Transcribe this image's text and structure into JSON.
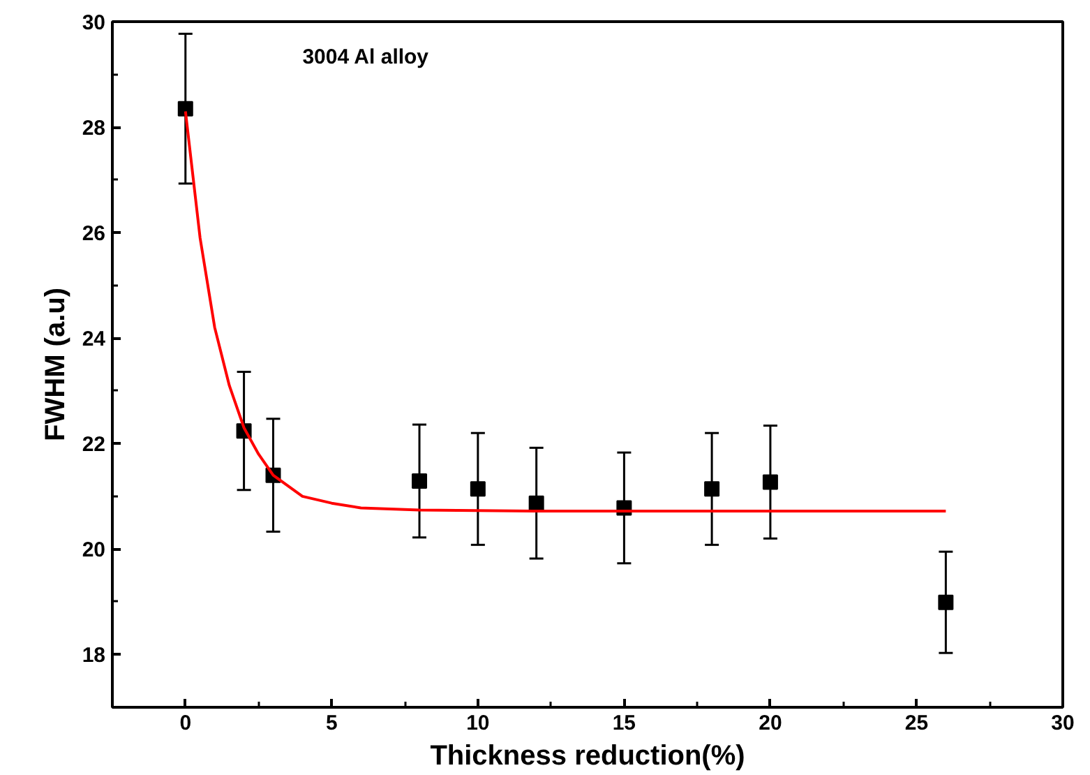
{
  "chart_data": {
    "type": "scatter",
    "xlabel": "Thickness reduction(%)",
    "ylabel": "FWHM (a.u)",
    "annotations": [
      "3004 Al alloy"
    ],
    "xlim": [
      -2.5,
      30
    ],
    "xticks": [
      0,
      5,
      10,
      15,
      20,
      25,
      30
    ],
    "ylim": [
      17,
      30
    ],
    "yticks": [
      18,
      20,
      22,
      24,
      26,
      28,
      30
    ],
    "grid": false,
    "marker": "square",
    "series": [
      {
        "color": "#000000",
        "x": [
          0,
          2,
          3,
          8,
          10,
          12,
          15,
          18,
          20,
          26
        ],
        "values": [
          28.35,
          22.24,
          21.4,
          21.29,
          21.14,
          20.87,
          20.78,
          21.14,
          21.27,
          18.99
        ],
        "errors": [
          1.42,
          1.12,
          1.07,
          1.07,
          1.06,
          1.05,
          1.05,
          1.06,
          1.07,
          0.96
        ]
      },
      {
        "type": "line",
        "color": "#ff0000",
        "marker": "none",
        "line_style": "solid",
        "x": [
          0,
          0.5,
          1,
          1.5,
          2,
          2.5,
          3,
          4,
          5,
          6,
          8,
          12,
          26
        ],
        "values": [
          28.3,
          25.9,
          24.2,
          23.1,
          22.3,
          21.8,
          21.4,
          21.0,
          20.87,
          20.78,
          20.74,
          20.72,
          20.72
        ]
      }
    ]
  }
}
